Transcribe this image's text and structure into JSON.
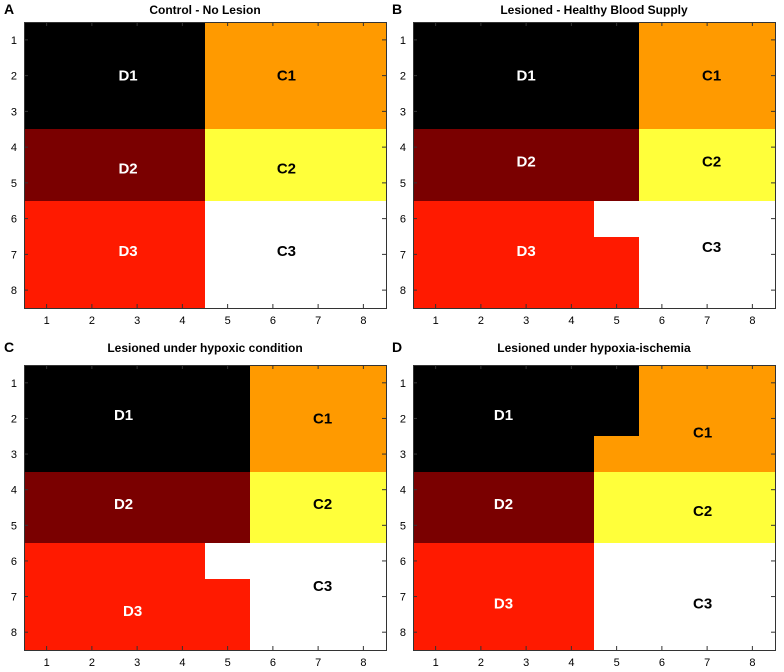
{
  "chart_data": [
    {
      "type": "heatmap",
      "panel": "A",
      "title": "Control - No Lesion",
      "xlabel": "",
      "ylabel": "",
      "x_ticks": [
        "1",
        "2",
        "3",
        "4",
        "5",
        "6",
        "7",
        "8"
      ],
      "y_ticks": [
        "1",
        "2",
        "3",
        "4",
        "5",
        "6",
        "7",
        "8"
      ],
      "xlim": [
        0.5,
        8.5
      ],
      "ylim": [
        0.5,
        8.5
      ],
      "y_direction": "reversed",
      "grid": [
        [
          "D1",
          "D1",
          "D1",
          "D1",
          "C1",
          "C1",
          "C1",
          "C1"
        ],
        [
          "D1",
          "D1",
          "D1",
          "D1",
          "C1",
          "C1",
          "C1",
          "C1"
        ],
        [
          "D1",
          "D1",
          "D1",
          "D1",
          "C1",
          "C1",
          "C1",
          "C1"
        ],
        [
          "D2",
          "D2",
          "D2",
          "D2",
          "C2",
          "C2",
          "C2",
          "C2"
        ],
        [
          "D2",
          "D2",
          "D2",
          "D2",
          "C2",
          "C2",
          "C2",
          "C2"
        ],
        [
          "D3",
          "D3",
          "D3",
          "D3",
          "C3",
          "C3",
          "C3",
          "C3"
        ],
        [
          "D3",
          "D3",
          "D3",
          "D3",
          "C3",
          "C3",
          "C3",
          "C3"
        ],
        [
          "D3",
          "D3",
          "D3",
          "D3",
          "C3",
          "C3",
          "C3",
          "C3"
        ]
      ],
      "labels": [
        {
          "text": "D1",
          "x": 2.8,
          "y": 2.0
        },
        {
          "text": "C1",
          "x": 6.3,
          "y": 2.0
        },
        {
          "text": "D2",
          "x": 2.8,
          "y": 4.6
        },
        {
          "text": "C2",
          "x": 6.3,
          "y": 4.6
        },
        {
          "text": "D3",
          "x": 2.8,
          "y": 6.9
        },
        {
          "text": "C3",
          "x": 6.3,
          "y": 6.9
        }
      ]
    },
    {
      "type": "heatmap",
      "panel": "B",
      "title": "Lesioned - Healthy Blood Supply",
      "xlabel": "",
      "ylabel": "",
      "x_ticks": [
        "1",
        "2",
        "3",
        "4",
        "5",
        "6",
        "7",
        "8"
      ],
      "y_ticks": [
        "1",
        "2",
        "3",
        "4",
        "5",
        "6",
        "7",
        "8"
      ],
      "xlim": [
        0.5,
        8.5
      ],
      "ylim": [
        0.5,
        8.5
      ],
      "y_direction": "reversed",
      "grid": [
        [
          "D1",
          "D1",
          "D1",
          "D1",
          "D1",
          "C1",
          "C1",
          "C1"
        ],
        [
          "D1",
          "D1",
          "D1",
          "D1",
          "D1",
          "C1",
          "C1",
          "C1"
        ],
        [
          "D1",
          "D1",
          "D1",
          "D1",
          "D1",
          "C1",
          "C1",
          "C1"
        ],
        [
          "D2",
          "D2",
          "D2",
          "D2",
          "D2",
          "C2",
          "C2",
          "C2"
        ],
        [
          "D2",
          "D2",
          "D2",
          "D2",
          "D2",
          "C2",
          "C2",
          "C2"
        ],
        [
          "D3",
          "D3",
          "D3",
          "D3",
          "C3",
          "C3",
          "C3",
          "C3"
        ],
        [
          "D3",
          "D3",
          "D3",
          "D3",
          "D3",
          "C3",
          "C3",
          "C3"
        ],
        [
          "D3",
          "D3",
          "D3",
          "D3",
          "D3",
          "C3",
          "C3",
          "C3"
        ]
      ],
      "labels": [
        {
          "text": "D1",
          "x": 3.0,
          "y": 2.0
        },
        {
          "text": "C1",
          "x": 7.1,
          "y": 2.0
        },
        {
          "text": "D2",
          "x": 3.0,
          "y": 4.4
        },
        {
          "text": "C2",
          "x": 7.1,
          "y": 4.4
        },
        {
          "text": "D3",
          "x": 3.0,
          "y": 6.9
        },
        {
          "text": "C3",
          "x": 7.1,
          "y": 6.8
        }
      ]
    },
    {
      "type": "heatmap",
      "panel": "C",
      "title": "Lesioned under hypoxic condition",
      "xlabel": "",
      "ylabel": "",
      "x_ticks": [
        "1",
        "2",
        "3",
        "4",
        "5",
        "6",
        "7",
        "8"
      ],
      "y_ticks": [
        "1",
        "2",
        "3",
        "4",
        "5",
        "6",
        "7",
        "8"
      ],
      "xlim": [
        0.5,
        8.5
      ],
      "ylim": [
        0.5,
        8.5
      ],
      "y_direction": "reversed",
      "grid": [
        [
          "D1",
          "D1",
          "D1",
          "D1",
          "D1",
          "C1",
          "C1",
          "C1"
        ],
        [
          "D1",
          "D1",
          "D1",
          "D1",
          "D1",
          "C1",
          "C1",
          "C1"
        ],
        [
          "D1",
          "D1",
          "D1",
          "D1",
          "D1",
          "C1",
          "C1",
          "C1"
        ],
        [
          "D2",
          "D2",
          "D2",
          "D2",
          "D2",
          "C2",
          "C2",
          "C2"
        ],
        [
          "D2",
          "D2",
          "D2",
          "D2",
          "D2",
          "C2",
          "C2",
          "C2"
        ],
        [
          "D3",
          "D3",
          "D3",
          "D3",
          "C3",
          "C3",
          "C3",
          "C3"
        ],
        [
          "D3",
          "D3",
          "D3",
          "D3",
          "D3",
          "C3",
          "C3",
          "C3"
        ],
        [
          "D3",
          "D3",
          "D3",
          "D3",
          "D3",
          "C3",
          "C3",
          "C3"
        ]
      ],
      "labels": [
        {
          "text": "D1",
          "x": 2.7,
          "y": 1.9
        },
        {
          "text": "C1",
          "x": 7.1,
          "y": 2.0
        },
        {
          "text": "D2",
          "x": 2.7,
          "y": 4.4
        },
        {
          "text": "C2",
          "x": 7.1,
          "y": 4.4
        },
        {
          "text": "D3",
          "x": 2.9,
          "y": 7.4
        },
        {
          "text": "C3",
          "x": 7.1,
          "y": 6.7
        }
      ]
    },
    {
      "type": "heatmap",
      "panel": "D",
      "title": "Lesioned under hypoxia-ischemia",
      "xlabel": "",
      "ylabel": "",
      "x_ticks": [
        "1",
        "2",
        "3",
        "4",
        "5",
        "6",
        "7",
        "8"
      ],
      "y_ticks": [
        "1",
        "2",
        "3",
        "4",
        "5",
        "6",
        "7",
        "8"
      ],
      "xlim": [
        0.5,
        8.5
      ],
      "ylim": [
        0.5,
        8.5
      ],
      "y_direction": "reversed",
      "grid": [
        [
          "D1",
          "D1",
          "D1",
          "D1",
          "D1",
          "C1",
          "C1",
          "C1"
        ],
        [
          "D1",
          "D1",
          "D1",
          "D1",
          "D1",
          "C1",
          "C1",
          "C1"
        ],
        [
          "D1",
          "D1",
          "D1",
          "D1",
          "C1",
          "C1",
          "C1",
          "C1"
        ],
        [
          "D2",
          "D2",
          "D2",
          "D2",
          "C2",
          "C2",
          "C2",
          "C2"
        ],
        [
          "D2",
          "D2",
          "D2",
          "D2",
          "C2",
          "C2",
          "C2",
          "C2"
        ],
        [
          "D3",
          "D3",
          "D3",
          "D3",
          "C3",
          "C3",
          "C3",
          "C3"
        ],
        [
          "D3",
          "D3",
          "D3",
          "D3",
          "C3",
          "C3",
          "C3",
          "C3"
        ],
        [
          "D3",
          "D3",
          "D3",
          "D3",
          "C3",
          "C3",
          "C3",
          "C3"
        ]
      ],
      "labels": [
        {
          "text": "D1",
          "x": 2.5,
          "y": 1.9
        },
        {
          "text": "C1",
          "x": 6.9,
          "y": 2.4
        },
        {
          "text": "D2",
          "x": 2.5,
          "y": 4.4
        },
        {
          "text": "C2",
          "x": 6.9,
          "y": 4.6
        },
        {
          "text": "D3",
          "x": 2.5,
          "y": 7.2
        },
        {
          "text": "C3",
          "x": 6.9,
          "y": 7.2
        }
      ]
    }
  ],
  "colors": {
    "D1": "#000000",
    "D2": "#7a0000",
    "D3": "#ff1a00",
    "C1": "#ff9a00",
    "C2": "#ffff3a",
    "C3": "#ffffff"
  },
  "label_colors": {
    "D1": "#ffffff",
    "D2": "#ffffff",
    "D3": "#ffffff",
    "C1": "#000000",
    "C2": "#000000",
    "C3": "#000000"
  }
}
